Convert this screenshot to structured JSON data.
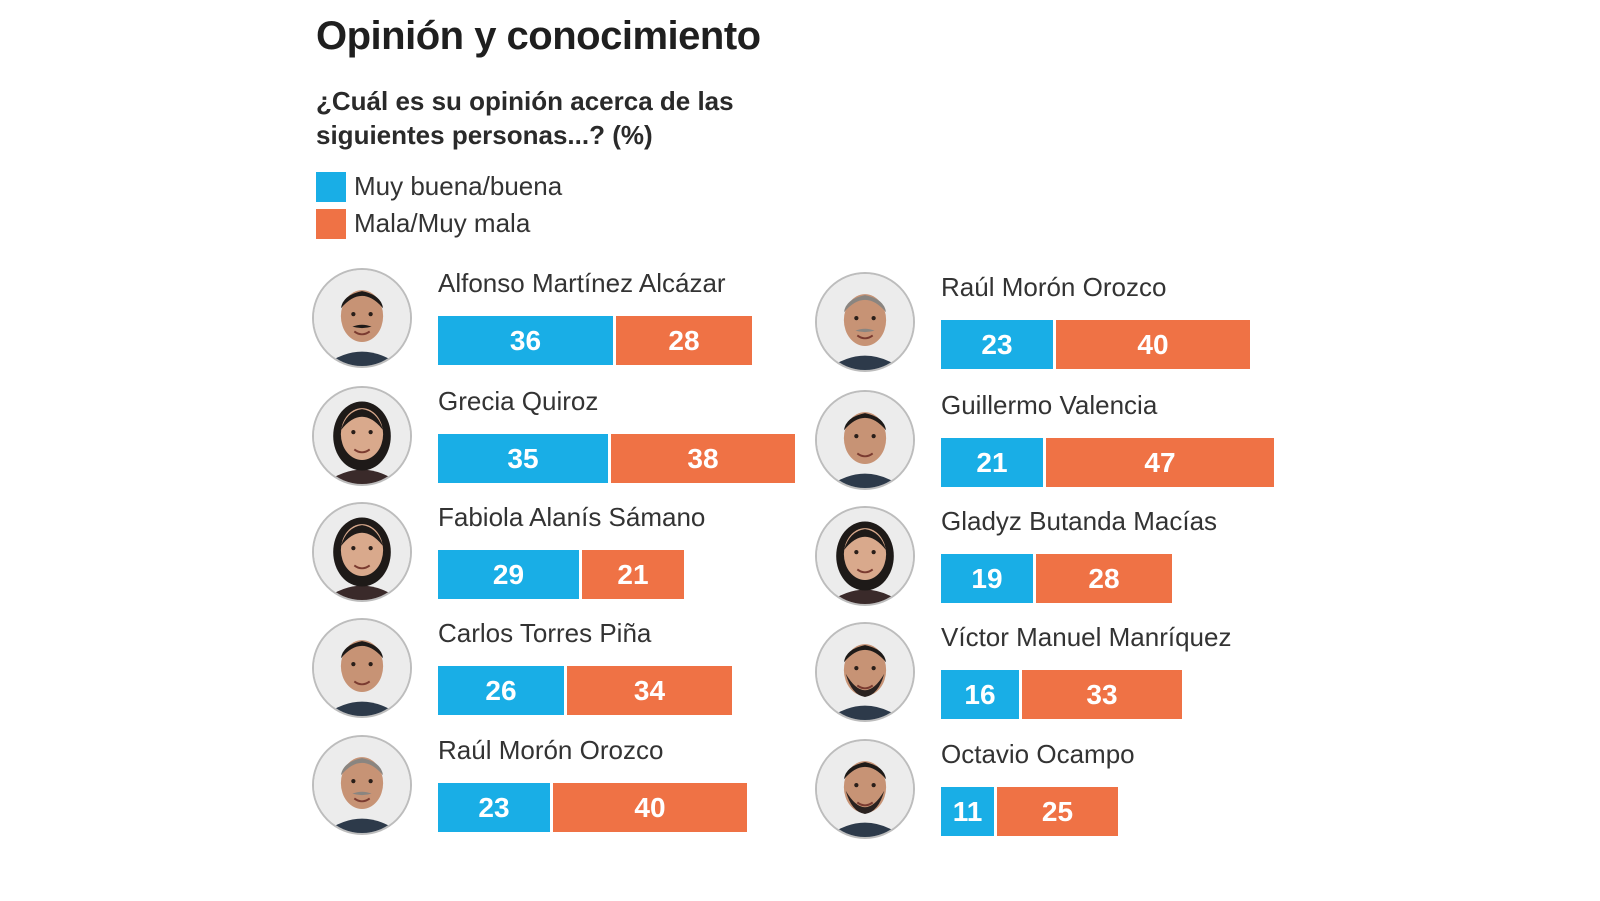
{
  "title": "Opinión y conocimiento",
  "subtitle": "¿Cuál es su opinión acerca de las siguientes personas...? (%)",
  "colors": {
    "positive": "#19aee6",
    "negative": "#ef7245"
  },
  "chart_data": {
    "type": "bar",
    "stacked": true,
    "orientation": "horizontal",
    "legend": [
      "Muy buena/buena",
      "Mala/Muy mala"
    ],
    "columns": [
      [
        {
          "name": "Alfonso Martínez Alcázar",
          "positive": 36,
          "negative": 28,
          "photo": "portrait-man-mustache"
        },
        {
          "name": "Grecia Quiroz",
          "positive": 35,
          "negative": 38,
          "photo": "portrait-woman"
        },
        {
          "name": "Fabiola Alanís Sámano",
          "positive": 29,
          "negative": 21,
          "photo": "portrait-woman-curly"
        },
        {
          "name": "Carlos Torres Piña",
          "positive": 26,
          "negative": 34,
          "photo": "portrait-man"
        },
        {
          "name": "Raúl Morón Orozco",
          "positive": 23,
          "negative": 40,
          "photo": "portrait-man-gray-mustache"
        }
      ],
      [
        {
          "name": "Raúl Morón Orozco",
          "positive": 23,
          "negative": 40,
          "photo": "portrait-man-gray-mustache"
        },
        {
          "name": "Guillermo Valencia",
          "positive": 21,
          "negative": 47,
          "photo": "portrait-man"
        },
        {
          "name": "Gladyz Butanda Macías",
          "positive": 19,
          "negative": 28,
          "photo": "portrait-woman"
        },
        {
          "name": "Víctor Manuel Manríquez",
          "positive": 16,
          "negative": 33,
          "photo": "portrait-man-beard"
        },
        {
          "name": "Octavio Ocampo",
          "positive": 11,
          "negative": 25,
          "photo": "portrait-man-beard"
        }
      ]
    ]
  }
}
